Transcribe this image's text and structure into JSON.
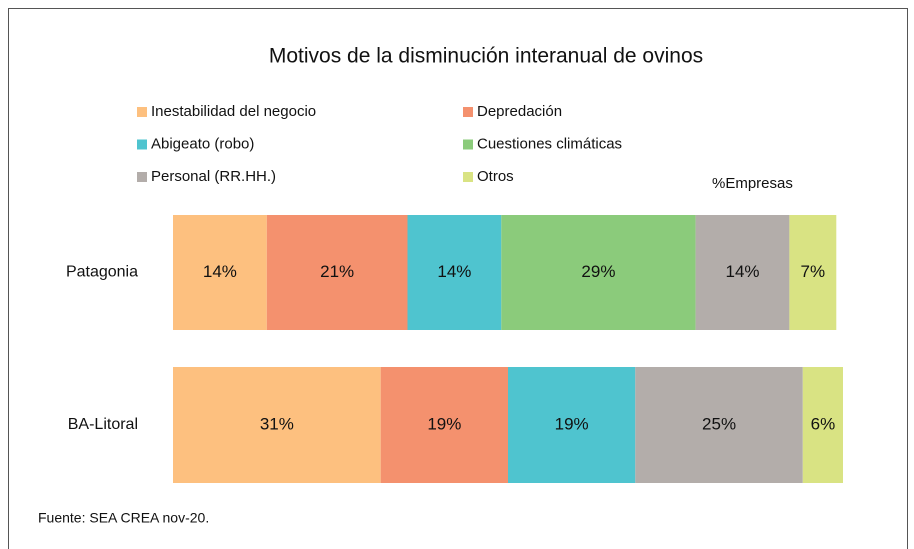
{
  "chart_data": {
    "type": "stacked-bar-horizontal",
    "title": "Motivos de la disminución interanual de ovinos",
    "axis_label": "%Empresas",
    "source": "Fuente: SEA CREA nov-20.",
    "categories": [
      "Patagonia",
      "BA-Litoral"
    ],
    "xlim": [
      0,
      100
    ],
    "series": [
      {
        "name": "Inestabilidad del negocio",
        "color": "#fdc07f",
        "values": [
          14,
          31
        ],
        "value_labels": [
          "14%",
          "31%"
        ]
      },
      {
        "name": "Depredación",
        "color": "#f4916e",
        "values": [
          21,
          19
        ],
        "value_labels": [
          "21%",
          "19%"
        ]
      },
      {
        "name": "Abigeato (robo)",
        "color": "#4fc4cf",
        "values": [
          14,
          19
        ],
        "value_labels": [
          "14%",
          "19%"
        ]
      },
      {
        "name": "Cuestiones climáticas",
        "color": "#8bcb7b",
        "values": [
          29,
          null
        ],
        "value_labels": [
          "29%",
          null
        ]
      },
      {
        "name": "Personal (RR.HH.)",
        "color": "#b3adaa",
        "values": [
          14,
          25
        ],
        "value_labels": [
          "14%",
          "25%"
        ]
      },
      {
        "name": "Otros",
        "color": "#d9e383",
        "values": [
          7,
          6
        ],
        "value_labels": [
          "7%",
          "6%"
        ]
      }
    ]
  }
}
